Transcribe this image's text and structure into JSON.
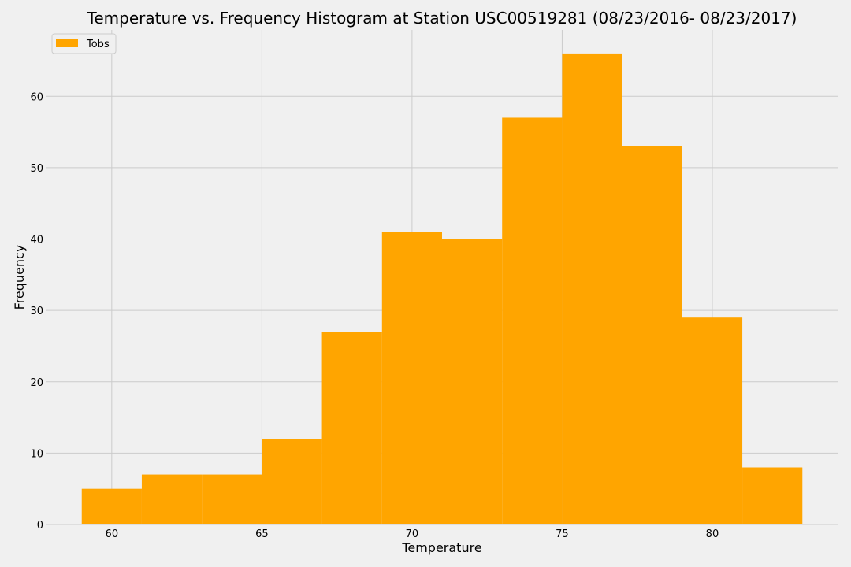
{
  "chart_data": {
    "type": "bar",
    "title": "Temperature vs. Frequency Histogram at Station USC00519281 (08/23/2016- 08/23/2017)",
    "xlabel": "Temperature",
    "ylabel": "Frequency",
    "xlim": [
      57.8,
      84.2
    ],
    "ylim": [
      0,
      69.3
    ],
    "x_ticks": [
      60,
      65,
      70,
      75,
      80
    ],
    "y_ticks": [
      0,
      10,
      20,
      30,
      40,
      50,
      60
    ],
    "grid": true,
    "legend": {
      "position": "top-left",
      "entries": [
        "Tobs"
      ]
    },
    "series": [
      {
        "name": "Tobs",
        "color": "#ffa500",
        "bins": [
          {
            "x0": 59,
            "x1": 61,
            "value": 5
          },
          {
            "x0": 61,
            "x1": 63,
            "value": 7
          },
          {
            "x0": 63,
            "x1": 65,
            "value": 7
          },
          {
            "x0": 65,
            "x1": 67,
            "value": 12
          },
          {
            "x0": 67,
            "x1": 69,
            "value": 27
          },
          {
            "x0": 69,
            "x1": 71,
            "value": 41
          },
          {
            "x0": 71,
            "x1": 73,
            "value": 40
          },
          {
            "x0": 73,
            "x1": 75,
            "value": 57
          },
          {
            "x0": 75,
            "x1": 77,
            "value": 66
          },
          {
            "x0": 77,
            "x1": 79,
            "value": 53
          },
          {
            "x0": 79,
            "x1": 81,
            "value": 29
          },
          {
            "x0": 81,
            "x1": 83,
            "value": 8
          }
        ]
      }
    ]
  }
}
